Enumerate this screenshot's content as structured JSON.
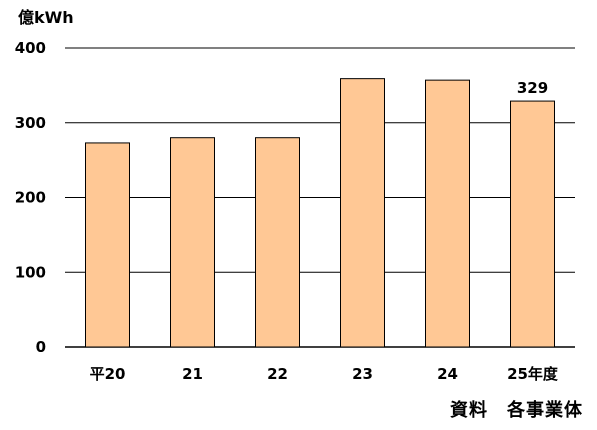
{
  "chart_data": {
    "type": "bar",
    "ylabel": "億kWh",
    "categories": [
      "平20",
      "21",
      "22",
      "23",
      "24",
      "25年度"
    ],
    "values": [
      273,
      280,
      280,
      359,
      357,
      329
    ],
    "data_labels": [
      "",
      "",
      "",
      "",
      "",
      "329"
    ],
    "ylim": [
      0,
      400
    ],
    "yticks": [
      0,
      100,
      200,
      300,
      400
    ],
    "grid": true,
    "colors": {
      "bar_fill": "#FFC895",
      "bar_stroke": "#000000",
      "grid": "#000000"
    }
  },
  "source_note": "資料　各事業体"
}
